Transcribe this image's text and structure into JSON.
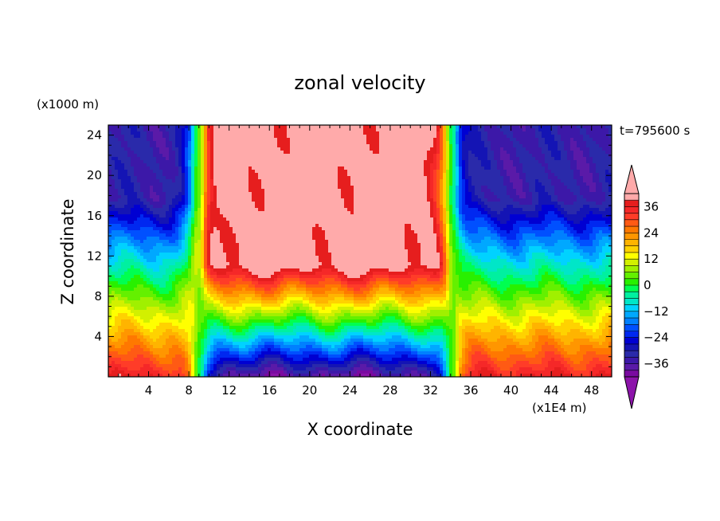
{
  "chart_data": {
    "type": "contour",
    "title": "zonal velocity",
    "xlabel": "X coordinate",
    "ylabel": "Z coordinate",
    "x_units": "(x1E4 m)",
    "y_units": "(x1000 m)",
    "time_label": "t=795600 s",
    "xlim": [
      0,
      50
    ],
    "ylim": [
      0,
      25
    ],
    "x_ticks": [
      4,
      8,
      12,
      16,
      20,
      24,
      28,
      32,
      36,
      40,
      44,
      48
    ],
    "y_ticks": [
      4,
      8,
      12,
      16,
      20,
      24
    ],
    "x_tick_labels": [
      "4",
      "8",
      "12",
      "16",
      "20",
      "24",
      "28",
      "32",
      "36",
      "40",
      "44",
      "48"
    ],
    "y_tick_labels": [
      "4",
      "8",
      "12",
      "16",
      "20",
      "24"
    ],
    "colorbar": {
      "levels": [
        -42,
        -39,
        -36,
        -33,
        -30,
        -27,
        -24,
        -21,
        -18,
        -15,
        -12,
        -9,
        -6,
        -3,
        0,
        3,
        6,
        9,
        12,
        15,
        18,
        21,
        24,
        27,
        30,
        33,
        36,
        39,
        42
      ],
      "colors": [
        "#7a0aa0",
        "#5a1aa8",
        "#3c18a8",
        "#2a2aaa",
        "#1414b4",
        "#0000d2",
        "#0028f0",
        "#0050ff",
        "#0080ff",
        "#00a8ff",
        "#00d2ff",
        "#00e6c8",
        "#00f0a0",
        "#00ff50",
        "#28f000",
        "#64f000",
        "#a0f000",
        "#d2f000",
        "#ffff00",
        "#ffd200",
        "#ffb400",
        "#ff9600",
        "#ff7800",
        "#ff5a14",
        "#ff3c28",
        "#f52828",
        "#e61e1e",
        "#ffaaaa"
      ],
      "under_color": "#8c14aa",
      "over_color": "#ffaaaa",
      "tick_values": [
        36,
        24,
        12,
        0,
        -12,
        -24,
        -36
      ],
      "tick_labels": [
        "36",
        "24",
        "12",
        "0",
        "−12",
        "−24",
        "−36"
      ]
    },
    "jets": [
      {
        "x_center": 9.5,
        "direction": "westward-to-eastward"
      },
      {
        "x_center": 34.0,
        "direction": "eastward-to-westward"
      }
    ]
  }
}
